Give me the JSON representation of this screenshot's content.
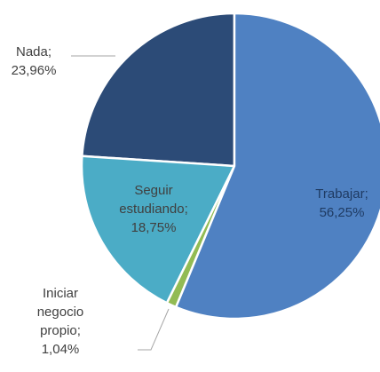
{
  "chart_data": {
    "type": "pie",
    "categories": [
      "Trabajar;",
      "Iniciar negocio propio;",
      "Seguir estudiando;",
      "Nada;"
    ],
    "values": [
      56.25,
      1.04,
      18.75,
      23.96
    ],
    "value_labels": [
      "56,25%",
      "1,04%",
      "18,75%",
      "23,96%"
    ],
    "colors": [
      "#4f81c2",
      "#92bb53",
      "#4bacc6",
      "#2c4b77"
    ]
  }
}
